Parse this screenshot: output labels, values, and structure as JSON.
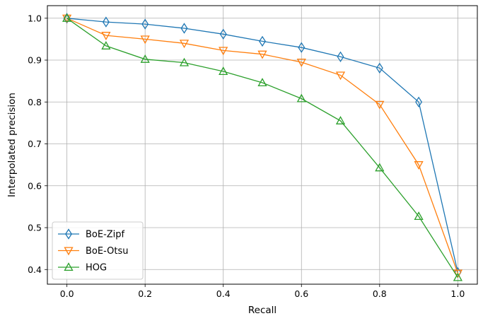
{
  "chart_data": {
    "type": "line",
    "title": "",
    "xlabel": "Recall",
    "ylabel": "Interpolated precision",
    "xlim": [
      -0.05,
      1.05
    ],
    "ylim": [
      0.365,
      1.03
    ],
    "xticks": [
      0.0,
      0.2,
      0.4,
      0.6,
      0.8,
      1.0
    ],
    "xtick_labels": [
      "0.0",
      "0.2",
      "0.4",
      "0.6",
      "0.8",
      "1.0"
    ],
    "yticks": [
      0.4,
      0.5,
      0.6,
      0.7,
      0.8,
      0.9,
      1.0
    ],
    "ytick_labels": [
      "0.4",
      "0.5",
      "0.6",
      "0.7",
      "0.8",
      "0.9",
      "1.0"
    ],
    "grid": true,
    "legend_position": "lower-left",
    "x": [
      0.0,
      0.1,
      0.2,
      0.3,
      0.4,
      0.5,
      0.6,
      0.7,
      0.8,
      0.9,
      1.0
    ],
    "series": [
      {
        "name": "BoE-Zipf",
        "color": "#1f77b4",
        "marker": "thin-diamond",
        "values": [
          1.0,
          0.991,
          0.986,
          0.976,
          0.962,
          0.945,
          0.93,
          0.908,
          0.881,
          0.8,
          0.393
        ]
      },
      {
        "name": "BoE-Otsu",
        "color": "#ff7f0e",
        "marker": "triangle-down",
        "values": [
          1.0,
          0.959,
          0.95,
          0.94,
          0.923,
          0.914,
          0.895,
          0.864,
          0.794,
          0.65,
          0.391
        ]
      },
      {
        "name": "HOG",
        "color": "#2ca02c",
        "marker": "triangle-up",
        "values": [
          1.0,
          0.934,
          0.902,
          0.894,
          0.873,
          0.846,
          0.808,
          0.755,
          0.643,
          0.527,
          0.381
        ]
      }
    ]
  }
}
